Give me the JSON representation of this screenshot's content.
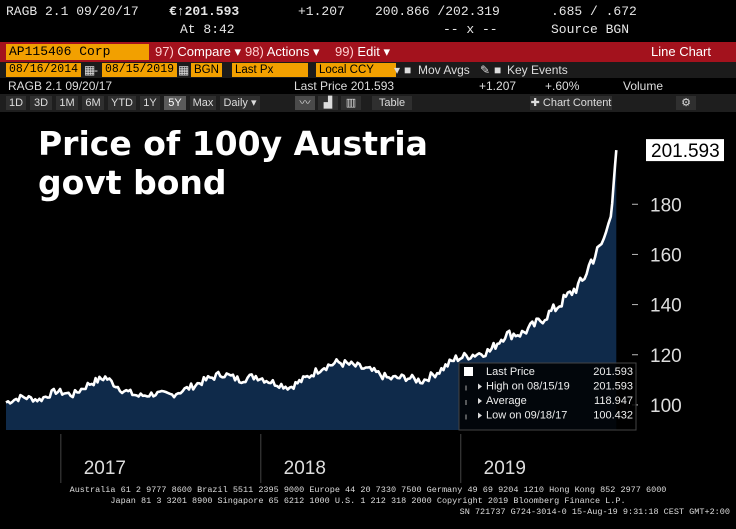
{
  "topbar": {
    "ticker": "RAGB 2.1 09/20/17",
    "price": "€↑201.593",
    "change": "+1.207",
    "bid_ask": "200.866 /202.319",
    "spread": ".685 / .672",
    "time": "At 8:42",
    "separator": "-- x --",
    "source": "Source BGN"
  },
  "menubar": {
    "security": "AP115406 Corp",
    "compare": "Compare",
    "actions": "Actions",
    "edit": "Edit",
    "chart_type": "Line Chart"
  },
  "params": {
    "start_date": "08/16/2014",
    "end_date": "08/15/2019",
    "source": "BGN",
    "field": "Last Px",
    "currency": "Local CCY",
    "mov_avgs": "Mov Avgs",
    "key_events": "Key Events"
  },
  "info": {
    "ticker": "RAGB 2.1 09/20/17",
    "last_price": "Last Price 201.593",
    "change": "+1.207",
    "pct": "+.60%",
    "volume": "Volume"
  },
  "ranges": {
    "buttons": [
      "1D",
      "3D",
      "1M",
      "6M",
      "YTD",
      "1Y",
      "5Y",
      "Max"
    ],
    "active": "5Y",
    "period": "Daily",
    "table": "Table",
    "chart_content": "Chart Content"
  },
  "chart_data": {
    "type": "area",
    "title": "Price of 100y Austria govt bond",
    "xlabel": "",
    "ylabel": "",
    "series": [
      {
        "name": "Last Price",
        "color": "#ffffff",
        "fill": "#0f2a4a",
        "points": [
          [
            "2016-09-01",
            101.0
          ],
          [
            "2016-10-01",
            103.2
          ],
          [
            "2016-11-01",
            102.0
          ],
          [
            "2016-12-01",
            105.5
          ],
          [
            "2017-01-01",
            104.0
          ],
          [
            "2017-02-01",
            108.5
          ],
          [
            "2017-03-01",
            111.0
          ],
          [
            "2017-04-01",
            106.0
          ],
          [
            "2017-05-01",
            103.5
          ],
          [
            "2017-06-01",
            104.5
          ],
          [
            "2017-07-01",
            104.0
          ],
          [
            "2017-08-01",
            106.8
          ],
          [
            "2017-09-01",
            110.0
          ],
          [
            "2017-10-01",
            112.5
          ],
          [
            "2017-11-01",
            110.0
          ],
          [
            "2017-12-01",
            111.5
          ],
          [
            "2018-01-01",
            109.0
          ],
          [
            "2018-02-01",
            107.0
          ],
          [
            "2018-03-01",
            110.5
          ],
          [
            "2018-04-01",
            115.0
          ],
          [
            "2018-05-01",
            117.0
          ],
          [
            "2018-06-01",
            115.5
          ],
          [
            "2018-07-01",
            113.5
          ],
          [
            "2018-08-01",
            110.5
          ],
          [
            "2018-09-01",
            111.0
          ],
          [
            "2018-10-01",
            109.5
          ],
          [
            "2018-11-01",
            113.5
          ],
          [
            "2018-12-01",
            118.5
          ],
          [
            "2019-01-01",
            120.0
          ],
          [
            "2019-02-01",
            121.5
          ],
          [
            "2019-03-01",
            128.0
          ],
          [
            "2019-04-01",
            128.5
          ],
          [
            "2019-05-01",
            133.0
          ],
          [
            "2019-06-01",
            138.5
          ],
          [
            "2019-07-01",
            145.0
          ],
          [
            "2019-07-20",
            149.0
          ],
          [
            "2019-08-05",
            157.5
          ],
          [
            "2019-08-20",
            162.0
          ],
          [
            "2019-09-01",
            168.0
          ],
          [
            "2019-09-10",
            178.0
          ],
          [
            "2019-09-15",
            188.0
          ],
          [
            "2019-09-20",
            201.593
          ]
        ]
      }
    ],
    "ylim": [
      90,
      212
    ],
    "yticks": [
      100,
      120,
      140,
      160,
      180
    ],
    "xticks": [
      {
        "label": "2017",
        "date": "2017-01-01"
      },
      {
        "label": "2018",
        "date": "2018-01-01"
      },
      {
        "label": "2019",
        "date": "2019-01-01"
      }
    ],
    "xlim": [
      "2016-09-01",
      "2019-10-15"
    ],
    "last_label": "201.593",
    "legend": {
      "placement": "bottom-right",
      "rows": [
        {
          "label": "Last Price",
          "value": "201.593"
        },
        {
          "label": "High on 08/15/19",
          "value": "201.593"
        },
        {
          "label": "Average",
          "value": "118.947"
        },
        {
          "label": "Low on 09/18/17",
          "value": "100.432"
        }
      ]
    },
    "grid": false
  },
  "footer": {
    "line1": "Australia 61 2 9777 8600 Brazil 5511 2395 9000 Europe 44 20 7330 7500 Germany 49 69 9204 1210 Hong Kong 852 2977 6000",
    "line2": "Japan 81 3 3201 8900       Singapore 65 6212 1000       U.S. 1 212 318 2000         Copyright 2019 Bloomberg Finance L.P.",
    "line3": "SN 721737 G724-3014-0 15-Aug-19  9:31:18 CEST GMT+2:00"
  }
}
